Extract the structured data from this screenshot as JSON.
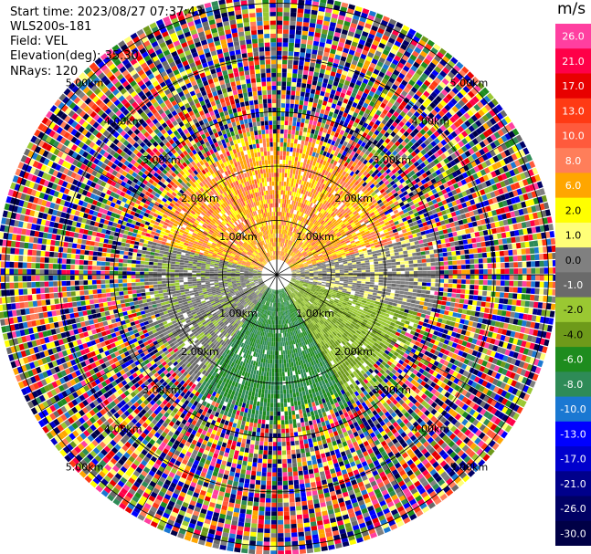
{
  "info": {
    "start_time": "Start time: 2023/08/27 07:37:43",
    "station": "WLS200s-181",
    "field": "Field: VEL",
    "elevation": "Elevation(deg): 35.30",
    "nrays": "NRays: 120"
  },
  "colorbar": {
    "unit": "m/s",
    "levels": [
      {
        "label": "26.0",
        "color": "#ff3fa0"
      },
      {
        "label": "21.0",
        "color": "#ff0048"
      },
      {
        "label": "17.0",
        "color": "#e80000"
      },
      {
        "label": "13.0",
        "color": "#ff3a14"
      },
      {
        "label": "10.0",
        "color": "#ff5a3c"
      },
      {
        "label": "8.0",
        "color": "#ff7e5a"
      },
      {
        "label": "6.0",
        "color": "#ffa600"
      },
      {
        "label": "2.0",
        "color": "#ffff00"
      },
      {
        "label": "1.0",
        "color": "#ffff78"
      },
      {
        "label": "0.0",
        "color": "#808080"
      },
      {
        "label": "-1.0",
        "color": "#6a6a6a"
      },
      {
        "label": "-2.0",
        "color": "#9ac832"
      },
      {
        "label": "-4.0",
        "color": "#6e9a1a"
      },
      {
        "label": "-6.0",
        "color": "#1e8c1e"
      },
      {
        "label": "-8.0",
        "color": "#2e8b57"
      },
      {
        "label": "-10.0",
        "color": "#1a78d2"
      },
      {
        "label": "-13.0",
        "color": "#0000ff"
      },
      {
        "label": "-17.0",
        "color": "#0000cd"
      },
      {
        "label": "-21.0",
        "color": "#00008b"
      },
      {
        "label": "-26.0",
        "color": "#000064"
      },
      {
        "label": "-30.0",
        "color": "#000046"
      }
    ]
  },
  "chart_data": {
    "type": "heatmap",
    "projection": "polar PPI",
    "field": "VEL",
    "units": "m/s",
    "elevation_deg": 35.3,
    "nrays": 120,
    "range_rings_km": [
      1.0,
      2.0,
      3.0,
      4.0,
      5.0
    ],
    "ring_labels": {
      "1": "1.00km",
      "2": "2.00km",
      "3": "3.00km",
      "4": "4.00km",
      "5": "5.00km"
    },
    "max_range_km": 5.2,
    "colorbar_levels": [
      26.0,
      21.0,
      17.0,
      13.0,
      10.0,
      8.0,
      6.0,
      2.0,
      1.0,
      0.0,
      -1.0,
      -2.0,
      -4.0,
      -6.0,
      -8.0,
      -10.0,
      -13.0,
      -17.0,
      -21.0,
      -26.0,
      -30.0
    ],
    "regions": [
      {
        "sector_deg": [
          -75,
          75
        ],
        "range_km": [
          0.3,
          2.6
        ],
        "value_range": [
          2.0,
          10.0
        ]
      },
      {
        "sector_deg": [
          75,
          105
        ],
        "range_km": [
          0.3,
          3.0
        ],
        "value_range": [
          -1.0,
          1.0
        ]
      },
      {
        "sector_deg": [
          105,
          150
        ],
        "range_km": [
          0.3,
          2.8
        ],
        "value_range": [
          -4.0,
          -2.0
        ]
      },
      {
        "sector_deg": [
          150,
          215
        ],
        "range_km": [
          0.3,
          2.8
        ],
        "value_range": [
          -8.0,
          -6.0
        ]
      },
      {
        "sector_deg": [
          215,
          285
        ],
        "range_km": [
          0.3,
          2.6
        ],
        "value_range": [
          -2.0,
          0.0
        ]
      },
      {
        "sector_deg": [
          0,
          360
        ],
        "range_km": [
          2.6,
          5.2
        ],
        "value_range": [
          -30.0,
          26.0
        ],
        "note": "noise"
      }
    ]
  }
}
